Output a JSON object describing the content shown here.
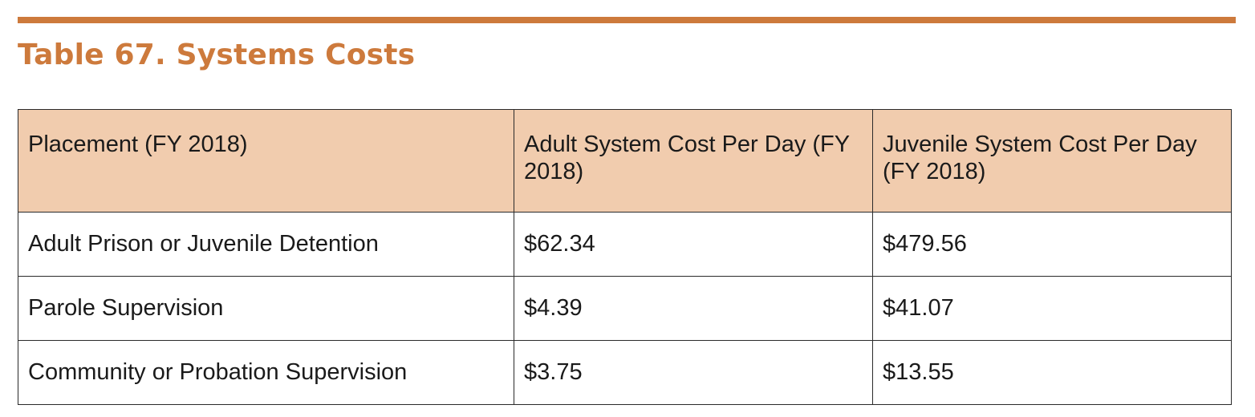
{
  "title": "Table 67. Systems Costs",
  "colors": {
    "accent": "#cd7a3c",
    "header_fill": "#f1ccae"
  },
  "table": {
    "headers": [
      "Placement (FY 2018)",
      "Adult System Cost Per Day (FY 2018)",
      "Juvenile System Cost Per Day (FY 2018)"
    ],
    "rows": [
      [
        "Adult Prison or Juvenile Detention",
        "$62.34",
        "$479.56"
      ],
      [
        "Parole Supervision",
        "$4.39",
        "$41.07"
      ],
      [
        "Community or Probation Supervision",
        "$3.75",
        "$13.55"
      ]
    ]
  }
}
